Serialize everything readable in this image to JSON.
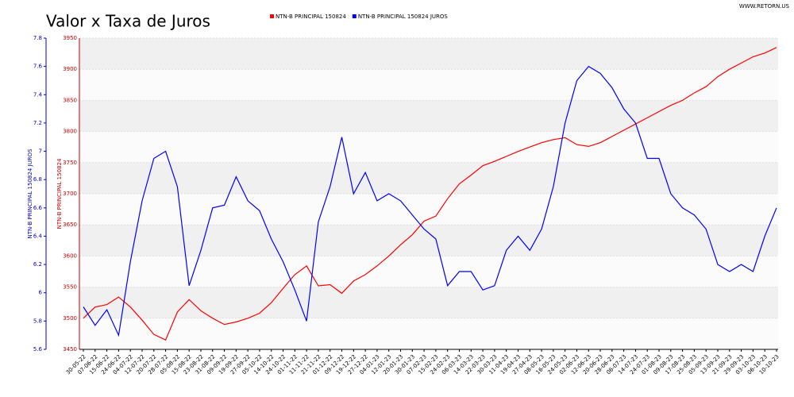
{
  "chart_data": {
    "type": "line",
    "title": "Valor x Taxa de Juros",
    "watermark": "WWW.RETORN.US",
    "y_label": "NTN-B PRINCIPAL 150824",
    "y2_label": "NTN-B PRINCIPAL 150824 JUROS",
    "categories": [
      "30-05-22",
      "07-06-22",
      "15-06-22",
      "24-06-22",
      "04-07-22",
      "12-07-22",
      "20-07-22",
      "28-07-22",
      "05-08-22",
      "15-08-22",
      "23-08-22",
      "31-08-22",
      "09-09-22",
      "19-09-22",
      "27-09-22",
      "05-10-22",
      "14-10-22",
      "24-10-22",
      "01-11-22",
      "11-11-22",
      "21-11-22",
      "01-12-22",
      "09-12-22",
      "19-12-22",
      "27-12-22",
      "04-01-23",
      "12-01-23",
      "20-01-23",
      "30-01-23",
      "07-02-23",
      "15-02-23",
      "24-02-23",
      "06-03-23",
      "14-03-23",
      "22-03-23",
      "30-03-23",
      "11-04-23",
      "19-04-23",
      "27-04-23",
      "08-05-23",
      "16-05-23",
      "24-05-23",
      "02-06-23",
      "12-06-23",
      "20-06-23",
      "28-06-23",
      "06-07-23",
      "14-07-23",
      "24-07-23",
      "01-08-23",
      "09-08-23",
      "17-08-23",
      "25-08-23",
      "05-09-23",
      "13-09-23",
      "21-09-23",
      "29-09-23",
      "03-10-23",
      "06-10-23",
      "10-10-23"
    ],
    "series": [
      {
        "name": "NTN-B PRINCIPAL 150824",
        "color": "#ff0000",
        "axis": "y",
        "values": [
          3500,
          3518,
          3522,
          3534,
          3518,
          3497,
          3474,
          3465,
          3510,
          3530,
          3512,
          3500,
          3490,
          3494,
          3500,
          3508,
          3525,
          3548,
          3570,
          3584,
          3552,
          3554,
          3540,
          3560,
          3570,
          3584,
          3600,
          3618,
          3634,
          3656,
          3664,
          3692,
          3716,
          3730,
          3745,
          3752,
          3760,
          3768,
          3775,
          3782,
          3787,
          3790,
          3779,
          3776,
          3782,
          3792,
          3802,
          3812,
          3822,
          3832,
          3842,
          3850,
          3862,
          3872,
          3888,
          3900,
          3910,
          3920,
          3926,
          3935
        ]
      },
      {
        "name": "NTN-B PRINCIPAL 150824 JUROS",
        "color": "#0000ff",
        "axis": "y2",
        "values": [
          5.9,
          5.77,
          5.88,
          5.7,
          6.22,
          6.65,
          6.95,
          7.0,
          6.75,
          6.05,
          6.3,
          6.6,
          6.62,
          6.82,
          6.65,
          6.58,
          6.38,
          6.22,
          6.02,
          5.8,
          6.5,
          6.75,
          7.1,
          6.7,
          6.85,
          6.65,
          6.7,
          6.65,
          6.55,
          6.45,
          6.38,
          6.05,
          6.15,
          6.15,
          6.02,
          6.05,
          6.3,
          6.4,
          6.3,
          6.45,
          6.75,
          7.2,
          7.5,
          7.6,
          7.55,
          7.45,
          7.3,
          7.2,
          6.95,
          6.95,
          6.7,
          6.6,
          6.55,
          6.45,
          6.2,
          6.15,
          6.2,
          6.15,
          6.4,
          6.6
        ]
      }
    ],
    "ylim": [
      3450,
      3950
    ],
    "yticks": [
      3450,
      3500,
      3550,
      3600,
      3650,
      3700,
      3750,
      3800,
      3850,
      3900,
      3950
    ],
    "y2lim": [
      5.6,
      7.8
    ],
    "y2ticks": [
      5.6,
      5.8,
      6,
      6.2,
      6.4,
      6.6,
      6.8,
      7,
      7.2,
      7.4,
      7.6,
      7.8
    ],
    "grid": true
  }
}
